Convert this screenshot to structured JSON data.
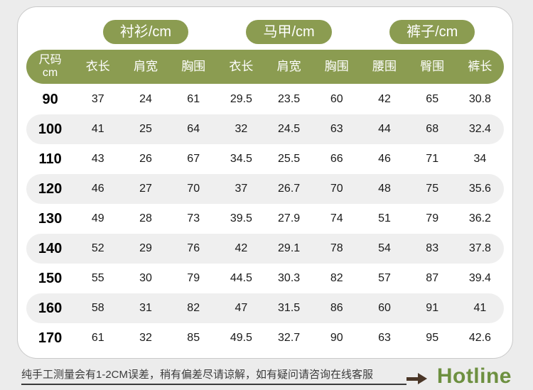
{
  "colors": {
    "green": "#8b9c51",
    "hotline_green": "#6d9040",
    "arrow_brown": "#4a3627",
    "row_shade": "#efefef",
    "card_border": "#c9c9c9",
    "page_background": "#ececec"
  },
  "ui": {
    "size_header": {
      "line1": "尺码",
      "line2": "cm"
    }
  },
  "footer": {
    "note": "纯手工测量会有1-2CM误差，稍有偏差尽请谅解，如有疑问请咨询在线客服",
    "hotline": "Hotline"
  },
  "chart_data": {
    "type": "table",
    "title": "",
    "column_groups": [
      {
        "label": "衬衫/cm",
        "span": 3
      },
      {
        "label": "马甲/cm",
        "span": 3
      },
      {
        "label": "裤子/cm",
        "span": 3
      }
    ],
    "columns": [
      "尺码cm",
      "衣长",
      "肩宽",
      "胸围",
      "衣长",
      "肩宽",
      "胸围",
      "腰围",
      "臀围",
      "裤长"
    ],
    "rows": [
      [
        90,
        37,
        24,
        61,
        29.5,
        23.5,
        60,
        42,
        65,
        30.8
      ],
      [
        100,
        41,
        25,
        64,
        32,
        24.5,
        63,
        44,
        68,
        32.4
      ],
      [
        110,
        43,
        26,
        67,
        34.5,
        25.5,
        66,
        46,
        71,
        34
      ],
      [
        120,
        46,
        27,
        70,
        37,
        26.7,
        70,
        48,
        75,
        35.6
      ],
      [
        130,
        49,
        28,
        73,
        39.5,
        27.9,
        74,
        51,
        79,
        36.2
      ],
      [
        140,
        52,
        29,
        76,
        42,
        29.1,
        78,
        54,
        83,
        37.8
      ],
      [
        150,
        55,
        30,
        79,
        44.5,
        30.3,
        82,
        57,
        87,
        39.4
      ],
      [
        160,
        58,
        31,
        82,
        47,
        31.5,
        86,
        60,
        91,
        41
      ],
      [
        170,
        61,
        32,
        85,
        49.5,
        32.7,
        90,
        63,
        95,
        42.6
      ]
    ],
    "shaded_row_indices": [
      1,
      3,
      5,
      7
    ],
    "layout": "first column is size, then 3 columns per garment group"
  }
}
